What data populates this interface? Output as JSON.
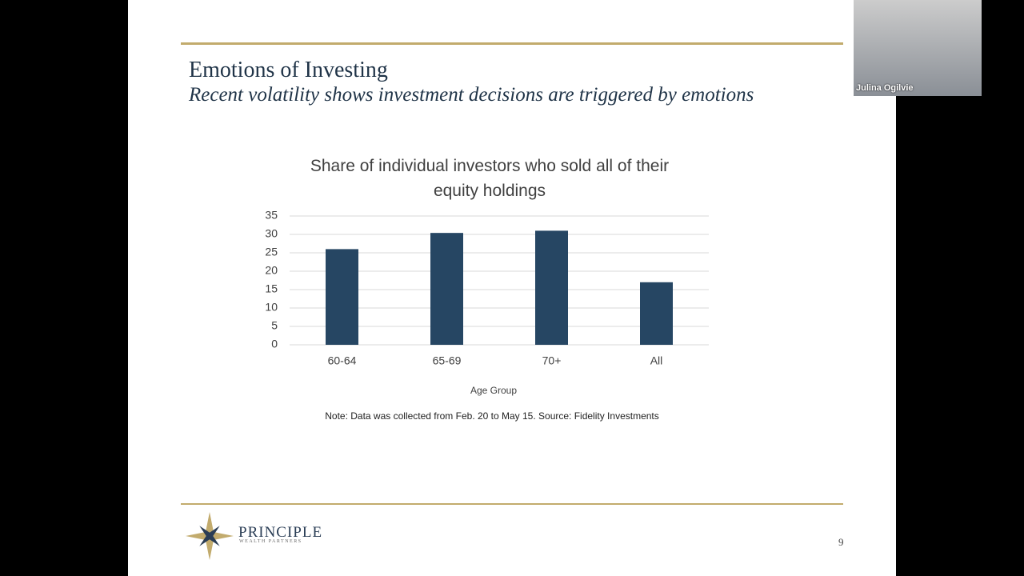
{
  "slide": {
    "title": "Emotions of Investing",
    "subtitle": "Recent volatility shows investment decisions are triggered by emotions",
    "note": "Note: Data was collected from Feb. 20 to May 15. Source: Fidelity Investments",
    "logo": {
      "name": "PRINCIPLE",
      "tagline": "WEALTH PARTNERS"
    },
    "page_number": "9"
  },
  "video": {
    "participant_name": "Julina Ogilvie"
  },
  "chart_data": {
    "type": "bar",
    "title": "Share of individual investors who sold all of their equity holdings",
    "x_label": "Age Group",
    "categories": [
      "60-64",
      "65-69",
      "70+",
      "All"
    ],
    "values": [
      26,
      30.4,
      31,
      17
    ],
    "color": "#264663",
    "ylim": [
      0,
      35
    ],
    "yticks": [
      0,
      5,
      10,
      15,
      20,
      25,
      30,
      35
    ],
    "grid": true
  }
}
